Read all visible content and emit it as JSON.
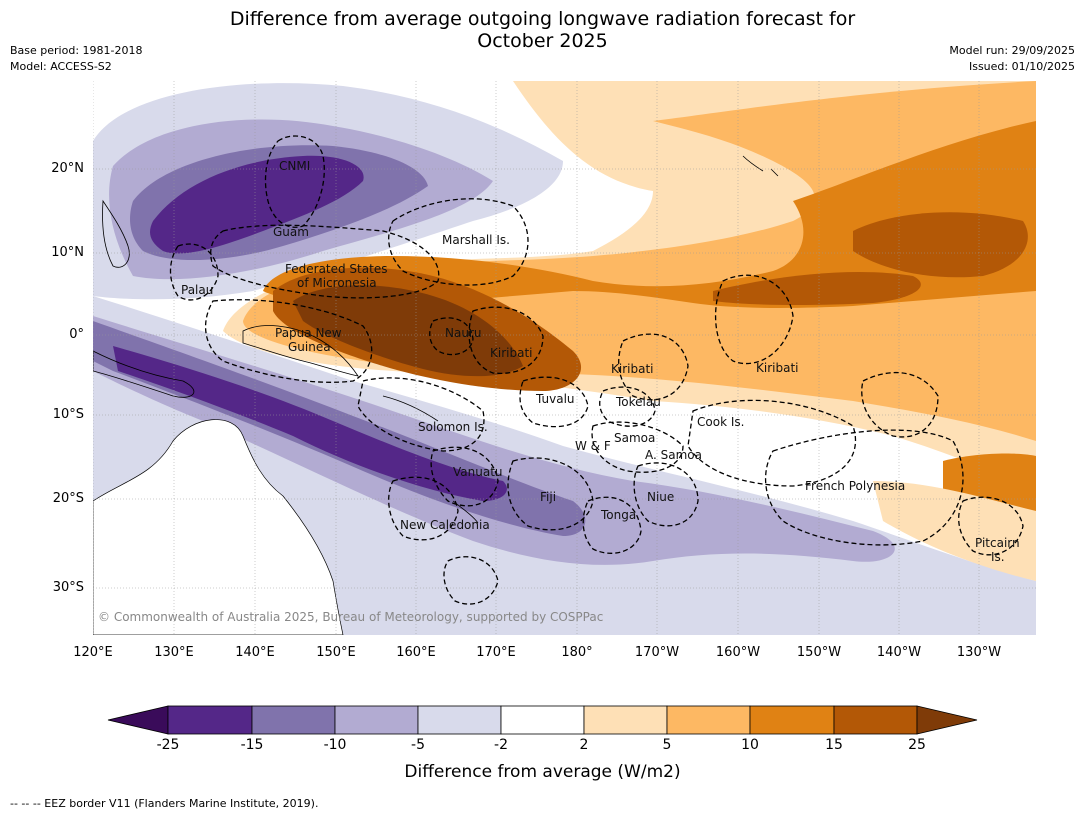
{
  "header": {
    "title_line1": "Difference from average outgoing longwave radiation forecast for",
    "title_line2": "October 2025",
    "base_period": "Base period: 1981-2018",
    "model": "Model: ACCESS-S2",
    "model_run": "Model run: 29/09/2025",
    "issued": "Issued: 01/10/2025"
  },
  "map": {
    "lat_ticks": [
      "20°N",
      "10°N",
      "0°",
      "10°S",
      "20°S",
      "30°S"
    ],
    "lon_ticks": [
      "120°E",
      "130°E",
      "140°E",
      "150°E",
      "160°E",
      "170°E",
      "180°",
      "170°W",
      "160°W",
      "150°W",
      "140°W",
      "130°W"
    ],
    "labels": {
      "cnmi": "CNMI",
      "guam": "Guam",
      "marshall": "Marshall Is.",
      "fsm1": "Federated States",
      "fsm2": "of Micronesia",
      "palau": "Palau",
      "png1": "Papua New",
      "png2": "Guinea",
      "nauru": "Nauru",
      "kiribati_w": "Kiribati",
      "kiribati_c": "Kiribati",
      "kiribati_e": "Kiribati",
      "tuvalu": "Tuvalu",
      "tokelau": "Tokelau",
      "solomon": "Solomon Is.",
      "wf": "W & F",
      "samoa": "Samoa",
      "asamoa": "A. Samoa",
      "cook": "Cook Is.",
      "vanuatu": "Vanuatu",
      "fiji": "Fiji",
      "niue": "Niue",
      "tonga": "Tonga",
      "newcal": "New Caledonia",
      "frpoly": "French Polynesia",
      "pitcairn1": "Pitcairn",
      "pitcairn2": "Is."
    },
    "copyright": "© Commonwealth of Australia 2025, Bureau of Meteorology, supported by COSPPac"
  },
  "colorbar": {
    "labels": [
      "-25",
      "-15",
      "-10",
      "-5",
      "-2",
      "2",
      "5",
      "10",
      "15",
      "25"
    ],
    "colors": [
      "#3a0b5a",
      "#542788",
      "#8073ac",
      "#b2abd2",
      "#d8daeb",
      "#ffffff",
      "#fee0b6",
      "#fdb863",
      "#e08214",
      "#b35806",
      "#7f3b08"
    ],
    "title": "Difference from average (W/m2)"
  },
  "footnote": "--  --  -- EEZ border V11 (Flanders Marine Institute, 2019)."
}
